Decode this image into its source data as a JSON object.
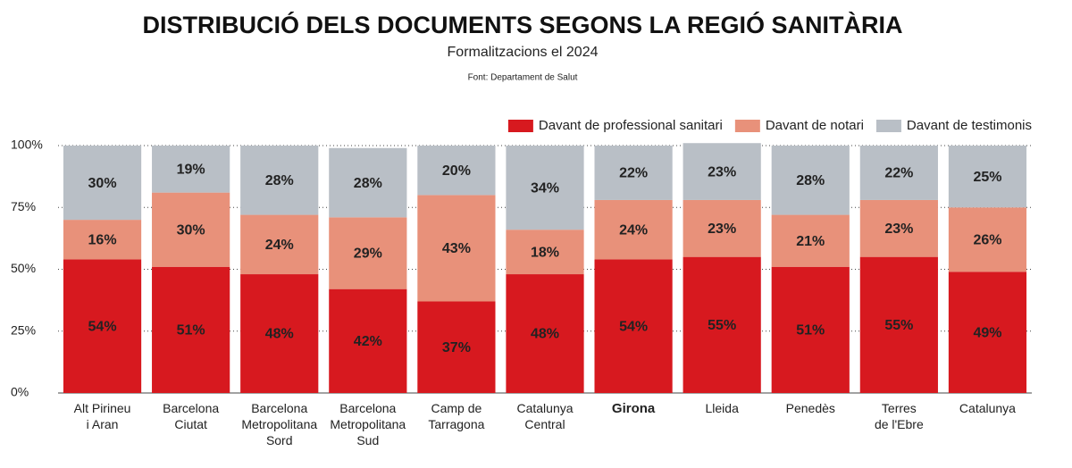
{
  "chart_data": {
    "type": "stacked_bar",
    "title": "DISTRIBUCIÓ DELS DOCUMENTS SEGONS LA REGIÓ SANITÀRIA",
    "subtitle": "Formalitzacions el 2024",
    "source": "Font: Departament de Salut",
    "categories": [
      "Alt Pirineu\ni Aran",
      "Barcelona\nCiutat",
      "Barcelona\nMetropolitana\nSord",
      "Barcelona\nMetropolitana\nSud",
      "Camp de\nTarragona",
      "Catalunya\nCentral",
      "Girona",
      "Lleida",
      "Penedès",
      "Terres\nde l'Ebre",
      "Catalunya"
    ],
    "series": [
      {
        "name": "Davant de professional sanitari",
        "color": "#d7191f",
        "values": [
          54,
          51,
          48,
          42,
          37,
          48,
          54,
          55,
          51,
          55,
          49
        ],
        "value_labels": [
          "54%",
          "51%",
          "48%",
          "42%",
          "37%",
          "48%",
          "54%",
          "55%",
          "51%",
          "55%",
          "49%"
        ]
      },
      {
        "name": "Davant de notari",
        "color": "#e8917a",
        "values": [
          16,
          30,
          24,
          29,
          43,
          18,
          24,
          23,
          21,
          23,
          26
        ],
        "value_labels": [
          "16%",
          "30%",
          "24%",
          "29%",
          "43%",
          "18%",
          "24%",
          "23%",
          "21%",
          "23%",
          "26%"
        ]
      },
      {
        "name": "Davant de testimonis",
        "color": "#b9bfc6",
        "values": [
          30,
          19,
          28,
          28,
          20,
          34,
          22,
          23,
          28,
          22,
          25
        ],
        "value_labels": [
          "30%",
          "19%",
          "28%",
          "28%",
          "20%",
          "34%",
          "22%",
          "23%",
          "28%",
          "22%",
          "25%"
        ]
      }
    ],
    "ylim": [
      0,
      100
    ],
    "yticks": [
      {
        "value": 0,
        "label": "0%"
      },
      {
        "value": 25,
        "label": "25%"
      },
      {
        "value": 50,
        "label": "50%"
      },
      {
        "value": 75,
        "label": "75%"
      },
      {
        "value": 100,
        "label": "100%"
      }
    ],
    "grid": true,
    "legend": "top-right"
  }
}
